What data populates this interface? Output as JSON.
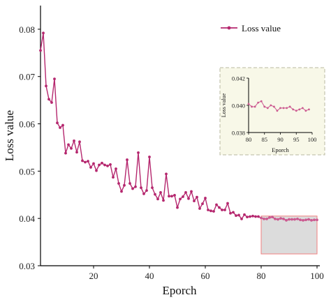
{
  "chart_data": [
    {
      "type": "line",
      "xlabel": "Eporch",
      "ylabel": "Loss value",
      "xlim": [
        0,
        100
      ],
      "ylim": [
        0.03,
        0.085
      ],
      "xticks": [
        20,
        40,
        60,
        80,
        100
      ],
      "yticks": [
        0.03,
        0.04,
        0.05,
        0.06,
        0.07,
        0.08
      ],
      "xtick_labels": [
        "20",
        "40",
        "60",
        "80",
        "100"
      ],
      "ytick_labels": [
        "0.03",
        "0.04",
        "0.05",
        "0.06",
        "0.07",
        "0.08"
      ],
      "legend": {
        "placement": "top-right",
        "entries": [
          "Loss value"
        ]
      },
      "highlight_region": {
        "x": [
          80,
          100
        ],
        "y": [
          0.0325,
          0.0405
        ],
        "color": "#dcdcdc",
        "border": "#f08080"
      },
      "series": [
        {
          "name": "Loss value",
          "color": "#b5276e",
          "x": [
            1,
            2,
            3,
            4,
            5,
            6,
            7,
            8,
            9,
            10,
            11,
            12,
            13,
            14,
            15,
            16,
            17,
            18,
            19,
            20,
            21,
            22,
            23,
            24,
            25,
            26,
            27,
            28,
            29,
            30,
            31,
            32,
            33,
            34,
            35,
            36,
            37,
            38,
            39,
            40,
            41,
            42,
            43,
            44,
            45,
            46,
            47,
            48,
            49,
            50,
            51,
            52,
            53,
            54,
            55,
            56,
            57,
            58,
            59,
            60,
            61,
            62,
            63,
            64,
            65,
            66,
            67,
            68,
            69,
            70,
            71,
            72,
            73,
            74,
            75,
            76,
            77,
            78,
            79,
            80,
            81,
            82,
            83,
            84,
            85,
            86,
            87,
            88,
            89,
            90,
            91,
            92,
            93,
            94,
            95,
            96,
            97,
            98,
            99,
            100
          ],
          "y": [
            0.0755,
            0.0792,
            0.068,
            0.0652,
            0.0645,
            0.0695,
            0.0602,
            0.0592,
            0.0597,
            0.0538,
            0.0556,
            0.0548,
            0.0564,
            0.054,
            0.0562,
            0.0522,
            0.0519,
            0.0521,
            0.0508,
            0.0516,
            0.0501,
            0.0513,
            0.0517,
            0.0513,
            0.0511,
            0.0514,
            0.0487,
            0.0505,
            0.0474,
            0.0457,
            0.047,
            0.0524,
            0.0474,
            0.0463,
            0.0467,
            0.0539,
            0.0465,
            0.0452,
            0.0459,
            0.053,
            0.0465,
            0.0451,
            0.0441,
            0.0455,
            0.0438,
            0.0494,
            0.0447,
            0.0447,
            0.0449,
            0.0423,
            0.0441,
            0.0446,
            0.0455,
            0.0442,
            0.0457,
            0.0437,
            0.0445,
            0.0421,
            0.0431,
            0.0443,
            0.0418,
            0.0416,
            0.0415,
            0.0429,
            0.0423,
            0.0418,
            0.0418,
            0.0432,
            0.0411,
            0.0413,
            0.0406,
            0.0407,
            0.0399,
            0.0408,
            0.0403,
            0.0404,
            0.0405,
            0.0404,
            0.0404,
            0.0401,
            0.0399,
            0.0399,
            0.0402,
            0.0403,
            0.0399,
            0.0398,
            0.04,
            0.0399,
            0.0396,
            0.0398,
            0.0398,
            0.0398,
            0.0399,
            0.0397,
            0.0396,
            0.0397,
            0.0398,
            0.0396,
            0.0397,
            0.0397
          ]
        }
      ]
    },
    {
      "type": "line",
      "xlabel": "Eporch",
      "ylabel": "Loss value",
      "xlim": [
        80,
        100
      ],
      "ylim": [
        0.038,
        0.042
      ],
      "xticks": [
        80,
        85,
        90,
        95,
        100
      ],
      "yticks": [
        0.038,
        0.04,
        0.042
      ],
      "xtick_labels": [
        "80",
        "85",
        "90",
        "95",
        "100"
      ],
      "ytick_labels": [
        "0.038",
        "0.040",
        "0.042"
      ],
      "background": "#f8f8e8",
      "series": [
        {
          "name": "Loss value",
          "color": "#cc5a90",
          "x": [
            80,
            81,
            82,
            83,
            84,
            85,
            86,
            87,
            88,
            89,
            90,
            91,
            92,
            93,
            94,
            95,
            96,
            97,
            98,
            99
          ],
          "y": [
            0.0401,
            0.0399,
            0.0399,
            0.0402,
            0.0403,
            0.0399,
            0.0398,
            0.04,
            0.0399,
            0.0396,
            0.0398,
            0.0398,
            0.0398,
            0.0399,
            0.0397,
            0.0396,
            0.0397,
            0.0398,
            0.0396,
            0.0397
          ]
        }
      ]
    }
  ]
}
